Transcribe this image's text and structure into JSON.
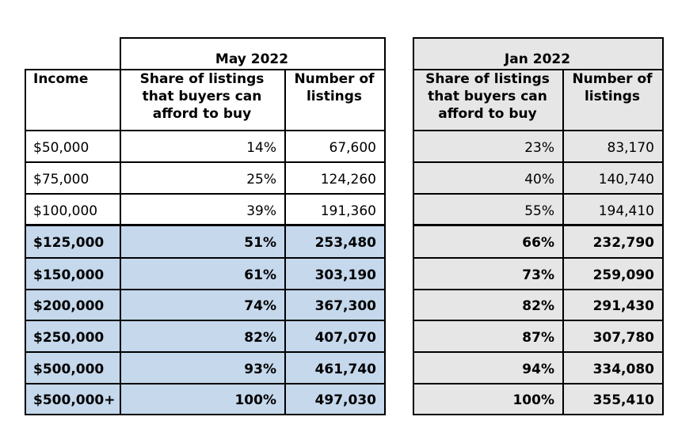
{
  "table": {
    "income_header": "Income",
    "periods": [
      {
        "label": "May 2022",
        "share_header": "Share of listings that buyers can afford to buy",
        "count_header": "Number of listings"
      },
      {
        "label": "Jan 2022",
        "share_header": "Share of listings that buyers can afford to buy",
        "count_header": "Number of listings"
      }
    ],
    "rows": [
      {
        "income": "$50,000",
        "may_share": "14%",
        "may_count": "67,600",
        "jan_share": "23%",
        "jan_count": "83,170",
        "highlight": false
      },
      {
        "income": "$75,000",
        "may_share": "25%",
        "may_count": "124,260",
        "jan_share": "40%",
        "jan_count": "140,740",
        "highlight": false
      },
      {
        "income": "$100,000",
        "may_share": "39%",
        "may_count": "191,360",
        "jan_share": "55%",
        "jan_count": "194,410",
        "highlight": false
      },
      {
        "income": "$125,000",
        "may_share": "51%",
        "may_count": "253,480",
        "jan_share": "66%",
        "jan_count": "232,790",
        "highlight": true
      },
      {
        "income": "$150,000",
        "may_share": "61%",
        "may_count": "303,190",
        "jan_share": "73%",
        "jan_count": "259,090",
        "highlight": true
      },
      {
        "income": "$200,000",
        "may_share": "74%",
        "may_count": "367,300",
        "jan_share": "82%",
        "jan_count": "291,430",
        "highlight": true
      },
      {
        "income": "$250,000",
        "may_share": "82%",
        "may_count": "407,070",
        "jan_share": "87%",
        "jan_count": "307,780",
        "highlight": true
      },
      {
        "income": "$500,000",
        "may_share": "93%",
        "may_count": "461,740",
        "jan_share": "94%",
        "jan_count": "334,080",
        "highlight": true
      },
      {
        "income": "$500,000+",
        "may_share": "100%",
        "may_count": "497,030",
        "jan_share": "100%",
        "jan_count": "355,410",
        "highlight": true
      }
    ],
    "colors": {
      "highlight_blue": "#c5d8ec",
      "jan_gray": "#e6e6e6",
      "border": "#000000"
    }
  }
}
